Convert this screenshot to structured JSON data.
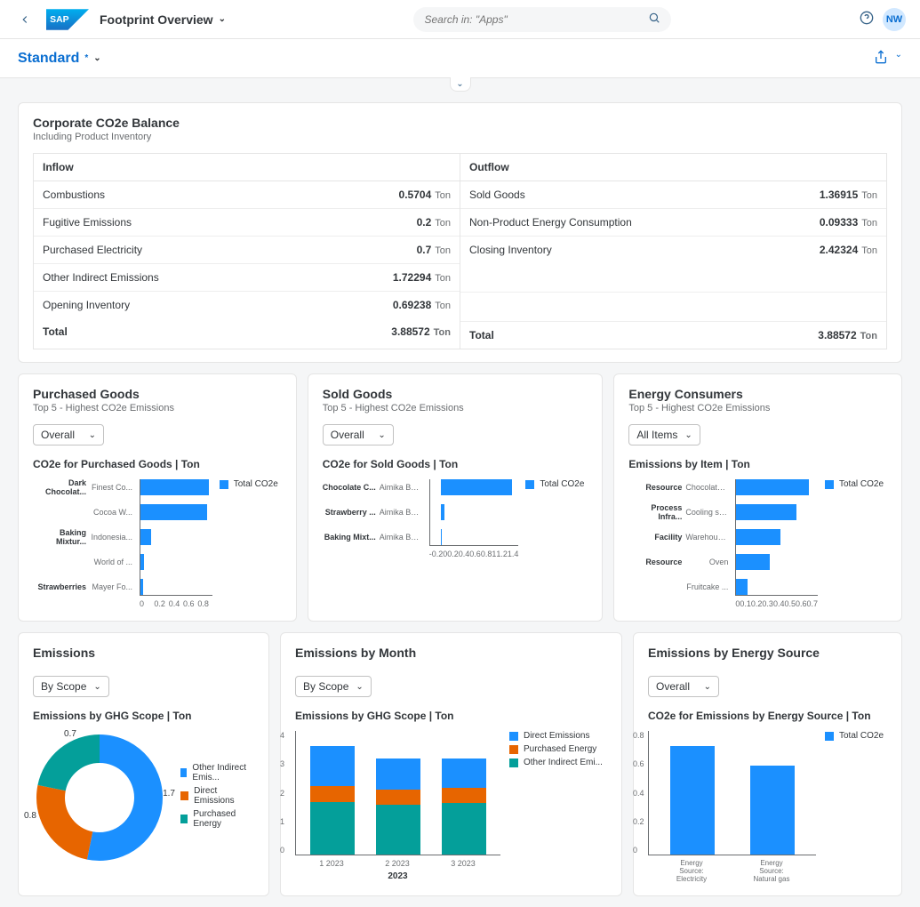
{
  "colors": {
    "blue": "#1b90ff",
    "orange": "#e76500",
    "green": "#049f9a",
    "link": "#0a6ed1"
  },
  "header": {
    "page_title": "Footprint Overview",
    "search_placeholder": "Search in: \"Apps\"",
    "avatar": "NW"
  },
  "subheader": {
    "variant": "Standard"
  },
  "balance": {
    "title": "Corporate CO2e Balance",
    "subtitle": "Including Product Inventory",
    "unit": "Ton",
    "inflow": {
      "header": "Inflow",
      "rows": [
        {
          "label": "Combustions",
          "value": "0.5704"
        },
        {
          "label": "Fugitive Emissions",
          "value": "0.2"
        },
        {
          "label": "Purchased Electricity",
          "value": "0.7"
        },
        {
          "label": "Other Indirect Emissions",
          "value": "1.72294"
        },
        {
          "label": "Opening Inventory",
          "value": "0.69238"
        }
      ],
      "total_label": "Total",
      "total_value": "3.88572"
    },
    "outflow": {
      "header": "Outflow",
      "rows": [
        {
          "label": "Sold Goods",
          "value": "1.36915"
        },
        {
          "label": "Non-Product Energy Consumption",
          "value": "0.09333"
        },
        {
          "label": "Closing Inventory",
          "value": "2.42324"
        }
      ],
      "total_label": "Total",
      "total_value": "3.88572"
    }
  },
  "purchased_goods": {
    "title": "Purchased Goods",
    "subtitle": "Top 5 - Highest CO2e Emissions",
    "selector": "Overall",
    "chart_title": "CO2e for Purchased Goods | Ton",
    "legend": "Total CO2e",
    "color": "#1b90ff",
    "xmax": 0.8,
    "xticks": [
      "0",
      "0.2",
      "0.4",
      "0.6",
      "0.8"
    ],
    "items": [
      {
        "cat": "Dark Chocolat...",
        "sub": "Finest Co...",
        "value": 0.76
      },
      {
        "cat": "",
        "sub": "Cocoa W...",
        "value": 0.74
      },
      {
        "cat": "Baking Mixtur...",
        "sub": "Indonesia...",
        "value": 0.12
      },
      {
        "cat": "",
        "sub": "World of ...",
        "value": 0.04
      },
      {
        "cat": "Strawberries",
        "sub": "Mayer Fo...",
        "value": 0.03
      }
    ]
  },
  "sold_goods": {
    "title": "Sold Goods",
    "subtitle": "Top 5 - Highest CO2e Emissions",
    "selector": "Overall",
    "chart_title": "CO2e for Sold Goods | Ton",
    "legend": "Total CO2e",
    "color": "#1b90ff",
    "xmin": -0.2,
    "xmax": 1.4,
    "xticks": [
      "-0.2",
      "0",
      "0.2",
      "0.4",
      "0.6",
      "0.8",
      "1",
      "1.2",
      "1.4"
    ],
    "items": [
      {
        "cat": "Chocolate C...",
        "sub": "Aimika Bak...",
        "value": 1.28
      },
      {
        "cat": "Strawberry ...",
        "sub": "Aimika Bak...",
        "value": 0.06
      },
      {
        "cat": "Baking Mixt...",
        "sub": "Aimika Bak...",
        "value": -0.01
      }
    ]
  },
  "energy_consumers": {
    "title": "Energy Consumers",
    "subtitle": "Top 5 - Highest CO2e Emissions",
    "selector": "All Items",
    "chart_title": "Emissions by Item | Ton",
    "legend": "Total CO2e",
    "color": "#1b90ff",
    "xmax": 0.7,
    "xticks": [
      "0",
      "0.1",
      "0.2",
      "0.3",
      "0.4",
      "0.5",
      "0.6",
      "0.7"
    ],
    "items": [
      {
        "cat": "Resource",
        "sub": "Chocolate ...",
        "value": 0.62
      },
      {
        "cat": "Process Infra...",
        "sub": "Cooling sy...",
        "value": 0.52
      },
      {
        "cat": "Facility",
        "sub": "Warehous...",
        "value": 0.38
      },
      {
        "cat": "Resource",
        "sub": "Oven",
        "value": 0.29
      },
      {
        "cat": "",
        "sub": "Fruitcake ...",
        "value": 0.1
      }
    ]
  },
  "emissions": {
    "title": "Emissions",
    "selector": "By Scope",
    "chart_title": "Emissions by GHG Scope | Ton",
    "segments": [
      {
        "label": "Other Indirect Emis...",
        "value": 1.7,
        "color": "#1b90ff"
      },
      {
        "label": "Direct Emissions",
        "value": 0.8,
        "color": "#e76500"
      },
      {
        "label": "Purchased Energy",
        "value": 0.7,
        "color": "#049f9a"
      }
    ],
    "donut_labels": [
      "0.7",
      "0.8",
      "1.7"
    ]
  },
  "emissions_by_month": {
    "title": "Emissions by Month",
    "selector": "By Scope",
    "chart_title": "Emissions by GHG Scope | Ton",
    "ymax": 4,
    "yticks": [
      "0",
      "1",
      "2",
      "3",
      "4"
    ],
    "xlabel": "2023",
    "legend": [
      {
        "label": "Direct Emissions",
        "color": "#1b90ff"
      },
      {
        "label": "Purchased Energy",
        "color": "#e76500"
      },
      {
        "label": "Other Indirect Emi...",
        "color": "#049f9a"
      }
    ],
    "bars": [
      {
        "x": "1 2023",
        "segs": [
          {
            "v": 1.7,
            "c": "#049f9a"
          },
          {
            "v": 0.5,
            "c": "#e76500"
          },
          {
            "v": 1.3,
            "c": "#1b90ff"
          }
        ]
      },
      {
        "x": "2 2023",
        "segs": [
          {
            "v": 1.6,
            "c": "#049f9a"
          },
          {
            "v": 0.5,
            "c": "#e76500"
          },
          {
            "v": 1.0,
            "c": "#1b90ff"
          }
        ]
      },
      {
        "x": "3 2023",
        "segs": [
          {
            "v": 1.65,
            "c": "#049f9a"
          },
          {
            "v": 0.5,
            "c": "#e76500"
          },
          {
            "v": 0.95,
            "c": "#1b90ff"
          }
        ]
      }
    ]
  },
  "emissions_by_source": {
    "title": "Emissions by Energy Source",
    "selector": "Overall",
    "chart_title": "CO2e for Emissions by Energy Source | Ton",
    "legend": "Total CO2e",
    "color": "#1b90ff",
    "ymax": 0.8,
    "yticks": [
      "0",
      "0.2",
      "0.4",
      "0.6",
      "0.8"
    ],
    "bars": [
      {
        "x": "Energy Source: Electricity",
        "value": 0.7
      },
      {
        "x": "Energy Source: Natural gas",
        "value": 0.57
      }
    ]
  }
}
